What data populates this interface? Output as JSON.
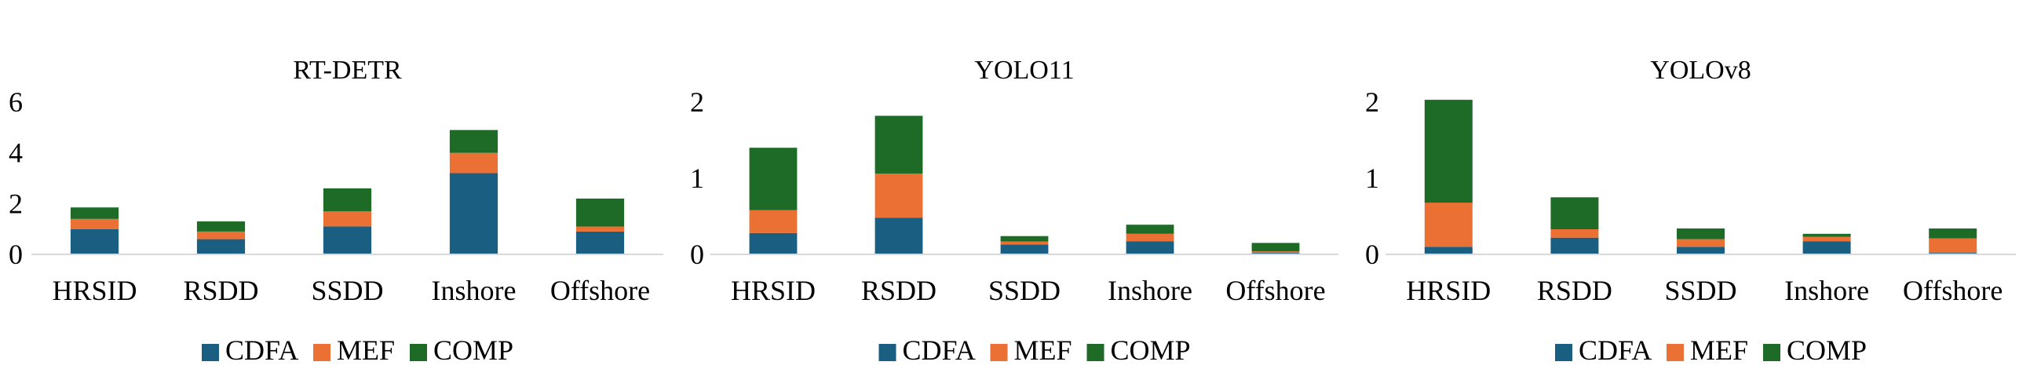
{
  "colors": {
    "CDFA": "#1a5f82",
    "MEF": "#ea7133",
    "COMP": "#1e6b28"
  },
  "chart_data": [
    {
      "type": "bar",
      "stacked": true,
      "title": "RT-DETR",
      "categories": [
        "HRSID",
        "RSDD",
        "SSDD",
        "Inshore",
        "Offshore"
      ],
      "ylim": [
        0,
        6
      ],
      "yticks": [
        0,
        2,
        4,
        6
      ],
      "legend": "bottom",
      "grid": false,
      "series": [
        {
          "name": "CDFA",
          "values": [
            1.0,
            0.6,
            1.1,
            3.2,
            0.9
          ]
        },
        {
          "name": "MEF",
          "values": [
            0.4,
            0.3,
            0.6,
            0.8,
            0.2
          ]
        },
        {
          "name": "COMP",
          "values": [
            0.45,
            0.4,
            0.9,
            0.9,
            1.1
          ]
        }
      ]
    },
    {
      "type": "bar",
      "stacked": true,
      "title": "YOLO11",
      "categories": [
        "HRSID",
        "RSDD",
        "SSDD",
        "Inshore",
        "Offshore"
      ],
      "ylim": [
        0,
        2
      ],
      "yticks": [
        0,
        1,
        2
      ],
      "legend": "bottom",
      "grid": false,
      "series": [
        {
          "name": "CDFA",
          "values": [
            0.28,
            0.48,
            0.13,
            0.17,
            0.02
          ]
        },
        {
          "name": "MEF",
          "values": [
            0.3,
            0.58,
            0.04,
            0.1,
            0.02
          ]
        },
        {
          "name": "COMP",
          "values": [
            0.82,
            0.76,
            0.07,
            0.12,
            0.11
          ]
        }
      ]
    },
    {
      "type": "bar",
      "stacked": true,
      "title": "YOLOv8",
      "categories": [
        "HRSID",
        "RSDD",
        "SSDD",
        "Inshore",
        "Offshore"
      ],
      "ylim": [
        0,
        2
      ],
      "yticks": [
        0,
        1,
        2
      ],
      "legend": "bottom",
      "grid": false,
      "series": [
        {
          "name": "CDFA",
          "values": [
            0.1,
            0.22,
            0.1,
            0.17,
            0.02
          ]
        },
        {
          "name": "MEF",
          "values": [
            0.58,
            0.11,
            0.1,
            0.06,
            0.19
          ]
        },
        {
          "name": "COMP",
          "values": [
            1.35,
            0.42,
            0.14,
            0.04,
            0.13
          ]
        }
      ]
    }
  ]
}
